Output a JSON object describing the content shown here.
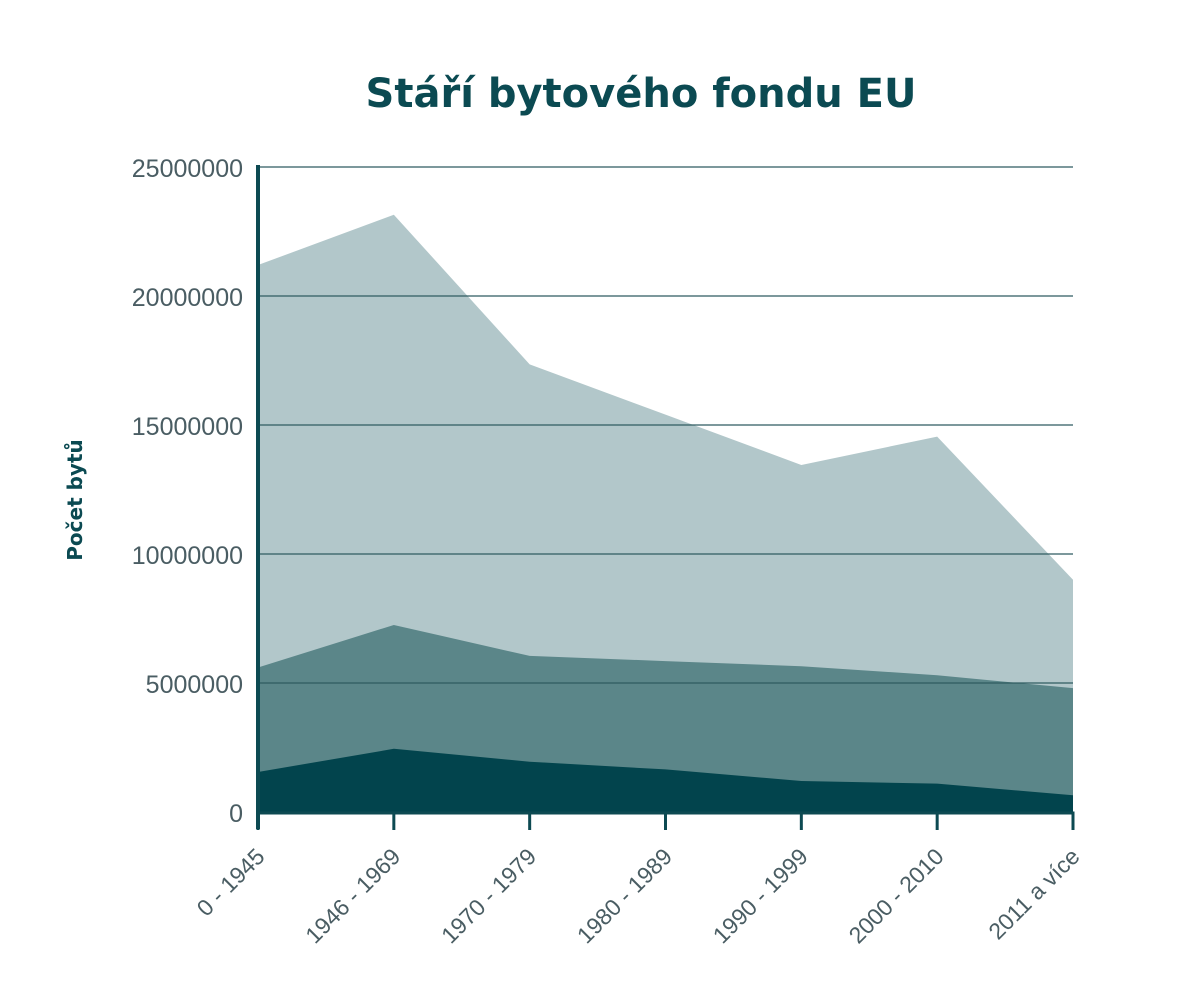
{
  "colors": {
    "title": "#0b4a52",
    "axis": "#0d4a52",
    "grid": "#2f5b60",
    "tick_text": "#4a5d63"
  },
  "chart_data": {
    "type": "area",
    "stacked": false,
    "title": "Stáří bytového fondu EU",
    "xlabel": "",
    "ylabel": "Počet bytů",
    "categories": [
      "0 - 1945",
      "1946 - 1969",
      "1970 - 1979",
      "1980 - 1989",
      "1990 - 1999",
      "2000 - 2010",
      "2011 a více"
    ],
    "y_ticks": [
      0,
      5000000,
      10000000,
      15000000,
      20000000,
      25000000
    ],
    "y_tick_labels": [
      "0",
      "5000000",
      "10000000",
      "15000000",
      "20000000",
      "25000000"
    ],
    "ylim": [
      0,
      25000000
    ],
    "grid": true,
    "legend": "none",
    "series": [
      {
        "color": "#b2c7ca",
        "values": [
          21200000,
          23150000,
          17350000,
          15400000,
          13450000,
          14550000,
          9000000
        ]
      },
      {
        "color": "#5b8689",
        "values": [
          5600000,
          7250000,
          6050000,
          5850000,
          5650000,
          5300000,
          4800000
        ]
      },
      {
        "color": "#02444d",
        "values": [
          1550000,
          2450000,
          1950000,
          1650000,
          1200000,
          1100000,
          650000
        ]
      }
    ]
  }
}
